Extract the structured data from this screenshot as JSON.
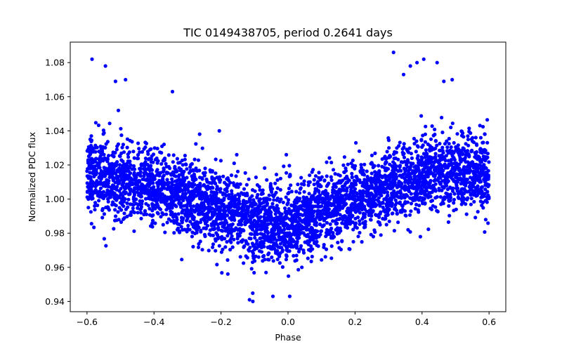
{
  "chart_data": {
    "type": "scatter",
    "title": "TIC 0149438705, period 0.2641 days",
    "xlabel": "Phase",
    "ylabel": "Normalized PDC flux",
    "xlim": [
      -0.65,
      0.65
    ],
    "ylim": [
      0.934,
      1.092
    ],
    "grid": false,
    "legend": "none",
    "marker_color": "#0000ff",
    "x_ticks": [
      -0.6,
      -0.4,
      -0.2,
      0.0,
      0.2,
      0.4,
      0.6
    ],
    "x_tick_labels": [
      "−0.6",
      "−0.4",
      "−0.2",
      "0.0",
      "0.2",
      "0.4",
      "0.6"
    ],
    "y_ticks": [
      0.94,
      0.96,
      0.98,
      1.0,
      1.02,
      1.04,
      1.06,
      1.08
    ],
    "y_tick_labels": [
      "0.94",
      "0.96",
      "0.98",
      "1.00",
      "1.02",
      "1.04",
      "1.06",
      "1.08"
    ],
    "phase_range": [
      -0.6,
      0.6
    ],
    "trend": {
      "phase": [
        -0.6,
        -0.4,
        -0.2,
        -0.1,
        0.0,
        0.2,
        0.4,
        0.6
      ],
      "flux": [
        1.015,
        1.008,
        0.995,
        0.987,
        0.985,
        1.0,
        1.015,
        1.015
      ]
    },
    "scatter_sigma": 0.011,
    "outliers": [
      {
        "x": -0.585,
        "y": 1.082
      },
      {
        "x": -0.545,
        "y": 1.078
      },
      {
        "x": -0.515,
        "y": 1.069
      },
      {
        "x": -0.485,
        "y": 1.07
      },
      {
        "x": -0.345,
        "y": 1.063
      },
      {
        "x": 0.315,
        "y": 1.086
      },
      {
        "x": 0.345,
        "y": 1.073
      },
      {
        "x": 0.365,
        "y": 1.078
      },
      {
        "x": 0.385,
        "y": 1.08
      },
      {
        "x": 0.405,
        "y": 1.082
      },
      {
        "x": 0.445,
        "y": 1.08
      },
      {
        "x": 0.465,
        "y": 1.069
      },
      {
        "x": 0.49,
        "y": 1.07
      },
      {
        "x": -0.205,
        "y": 1.04
      },
      {
        "x": -0.005,
        "y": 1.026
      },
      {
        "x": -0.115,
        "y": 0.941
      },
      {
        "x": -0.105,
        "y": 0.94
      },
      {
        "x": -0.045,
        "y": 0.943
      },
      {
        "x": 0.005,
        "y": 0.943
      },
      {
        "x": 0.395,
        "y": 0.978
      },
      {
        "x": 0.59,
        "y": 0.988
      },
      {
        "x": -0.505,
        "y": 0.988
      }
    ]
  }
}
